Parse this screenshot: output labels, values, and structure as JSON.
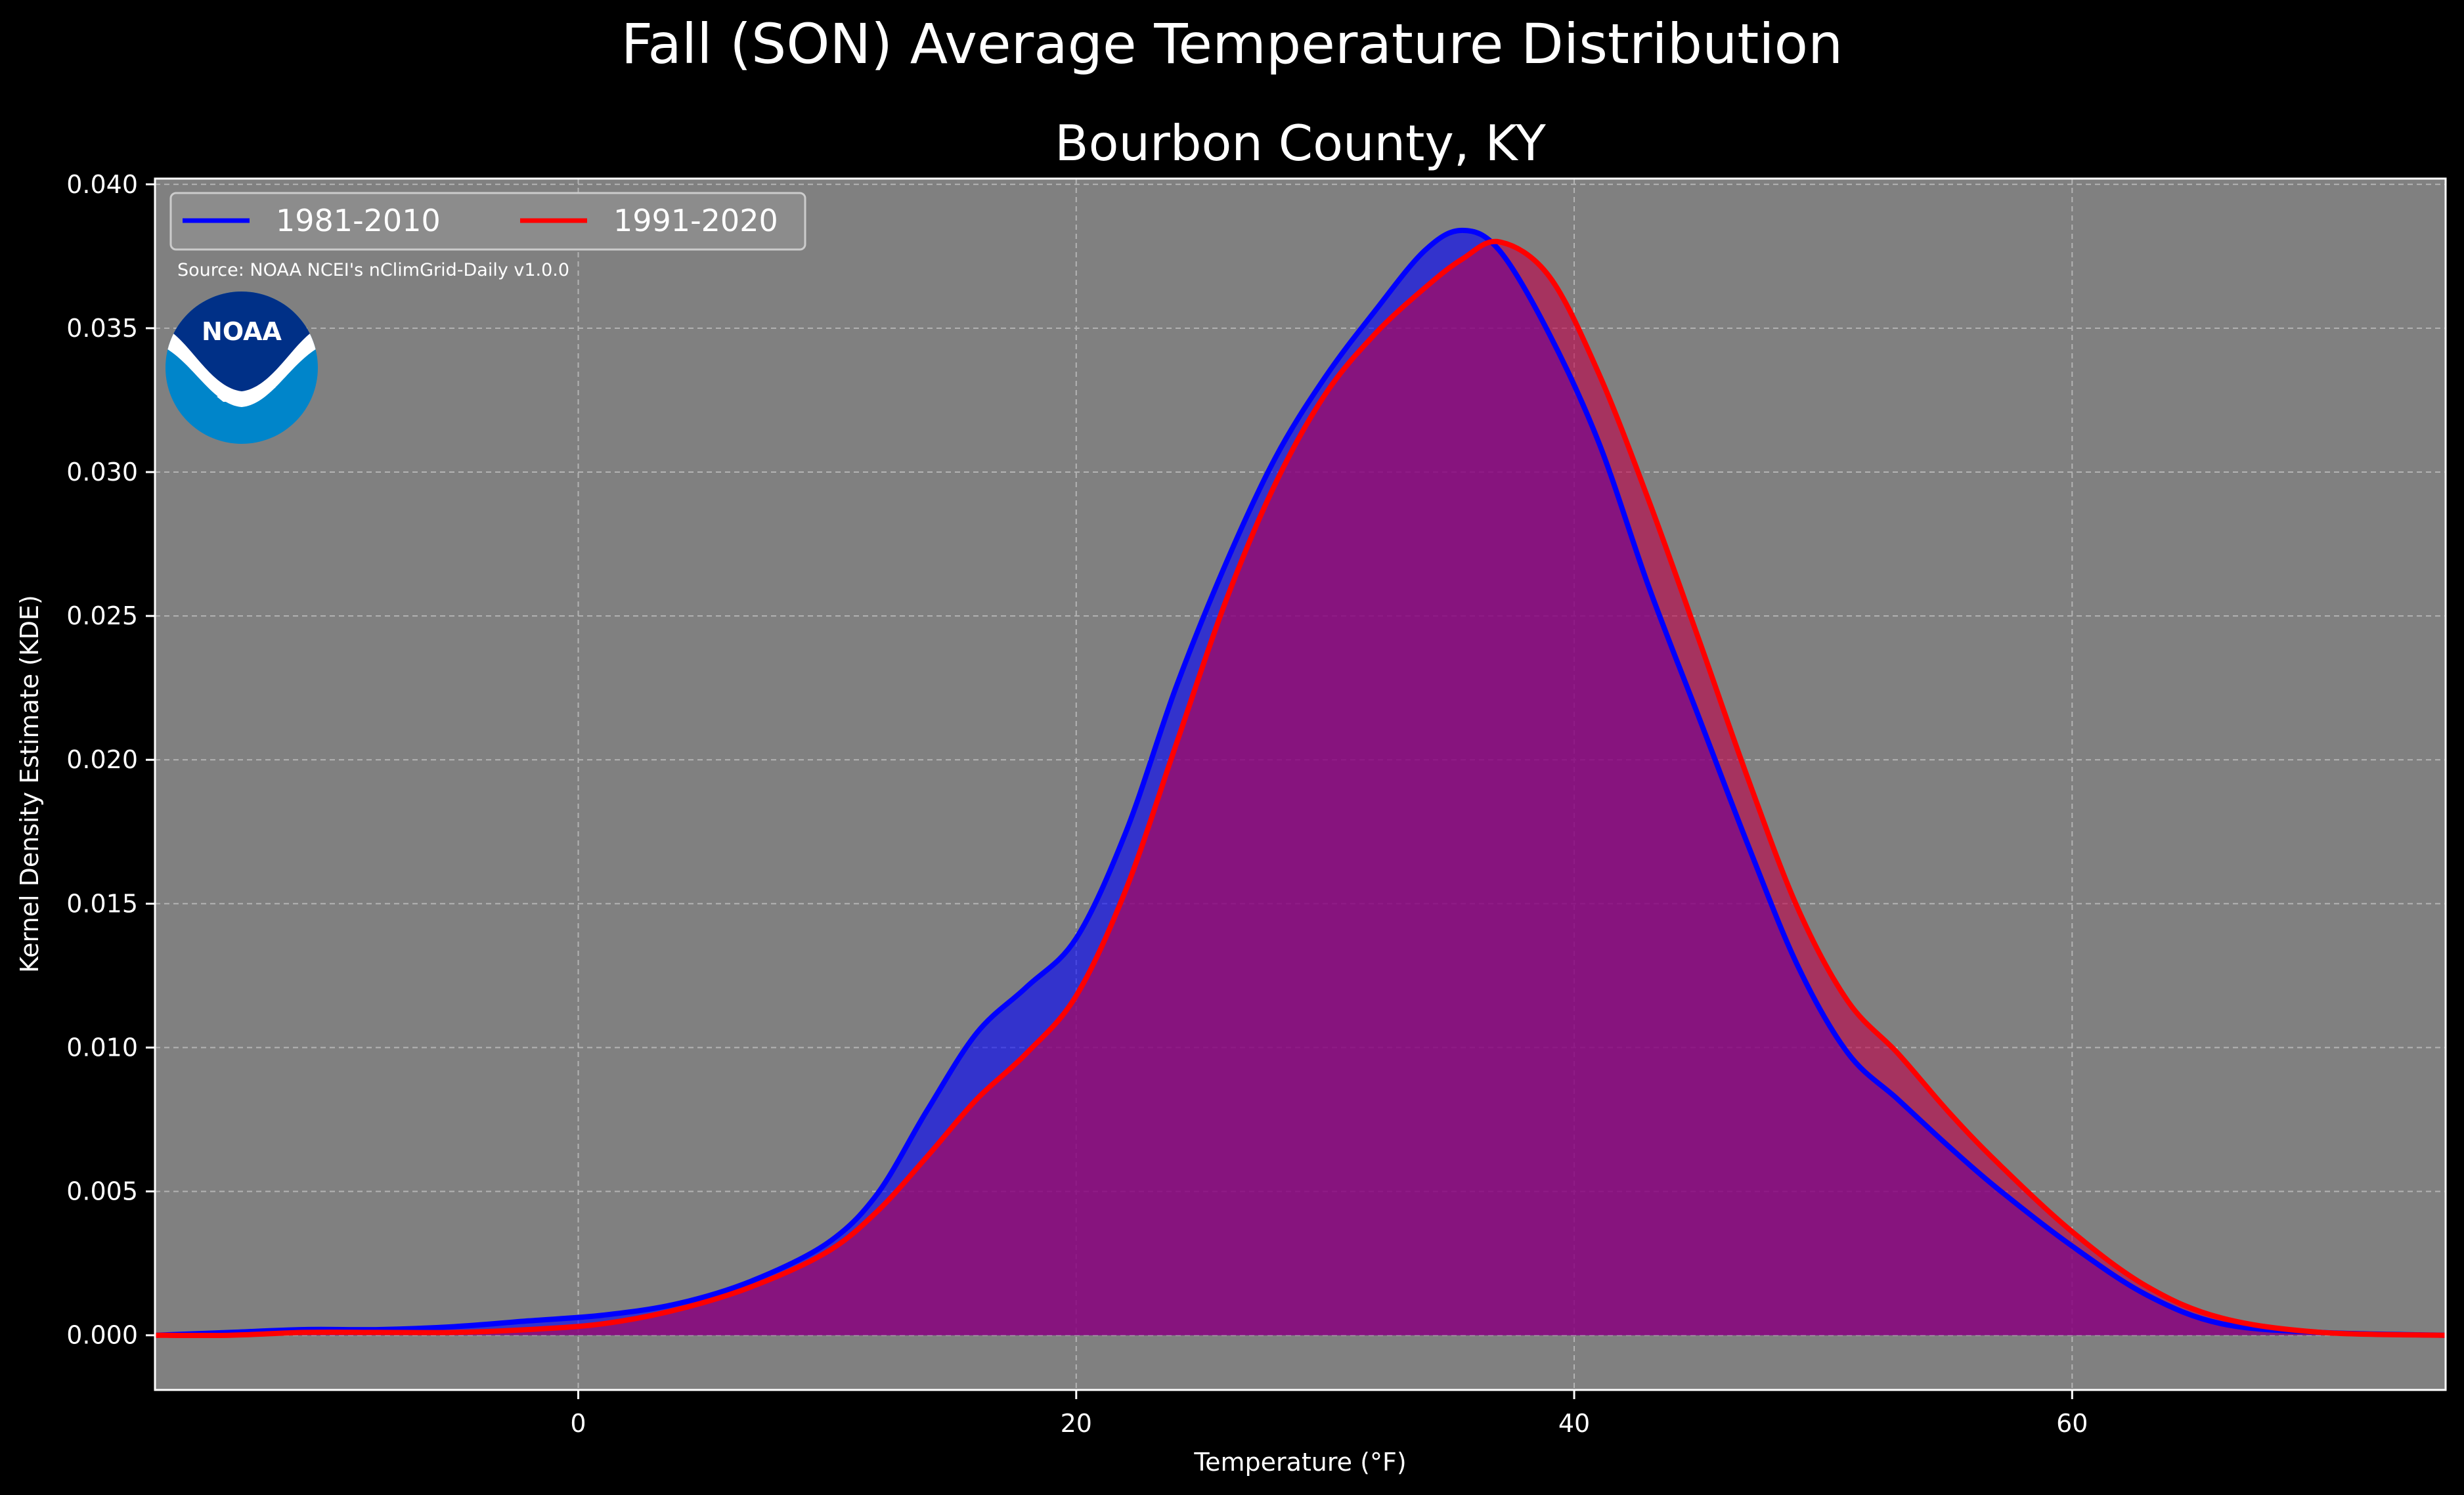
{
  "suptitle": "Fall (SON) Average Temperature Distribution",
  "title": "Bourbon County, KY",
  "source_text": "Source: NOAA NCEI's nClimGrid-Daily v1.0.0",
  "logo": {
    "text": "NOAA",
    "icon": "noaa-logo",
    "colors": {
      "top": "#003087",
      "bottom": "#0085ca",
      "wave": "#ffffff"
    }
  },
  "chart_data": {
    "type": "area",
    "title": "Bourbon County, KY",
    "xlabel": "Temperature (°F)",
    "ylabel": "Kernel Density Estimate (KDE)",
    "xlim": [
      -17,
      75
    ],
    "ylim": [
      -0.0019,
      0.0402
    ],
    "xticks": [
      0,
      20,
      40,
      60
    ],
    "xtick_labels": [
      "0",
      "20",
      "40",
      "60"
    ],
    "yticks": [
      0.0,
      0.005,
      0.01,
      0.015,
      0.02,
      0.025,
      0.03,
      0.035,
      0.04
    ],
    "ytick_labels": [
      "0.000",
      "0.005",
      "0.010",
      "0.015",
      "0.020",
      "0.025",
      "0.030",
      "0.035",
      "0.040"
    ],
    "grid": true,
    "legend_position": "upper-left",
    "background_color": "#808080",
    "series": [
      {
        "name": "1981-2010",
        "color": "#0000ff",
        "fill_color": "#0000ff",
        "x": [
          -17,
          -14,
          -11,
          -8,
          -5,
          -2,
          1,
          4,
          7,
          10,
          12,
          14,
          16,
          18,
          20,
          22,
          24,
          26,
          28,
          30,
          32,
          34,
          35.5,
          37,
          39,
          41,
          43,
          45,
          47,
          49,
          51,
          53,
          55,
          57,
          60,
          63,
          66,
          70,
          75
        ],
        "y": [
          0.0,
          0.0001,
          0.0002,
          0.0002,
          0.0003,
          0.0005,
          0.0007,
          0.0011,
          0.0019,
          0.0032,
          0.0049,
          0.0078,
          0.0105,
          0.0121,
          0.0138,
          0.0175,
          0.0225,
          0.0268,
          0.0305,
          0.0333,
          0.0356,
          0.0377,
          0.0384,
          0.0377,
          0.0348,
          0.031,
          0.026,
          0.0215,
          0.017,
          0.0128,
          0.0098,
          0.0082,
          0.0066,
          0.0051,
          0.0031,
          0.0014,
          0.0004,
          0.0001,
          0.0
        ]
      },
      {
        "name": "1991-2020",
        "color": "#ff0000",
        "fill_color": "#c0004a",
        "x": [
          -17,
          -14,
          -11,
          -8,
          -5,
          -2,
          1,
          4,
          7,
          10,
          12,
          14,
          16,
          18,
          20,
          22,
          24,
          26,
          28,
          30,
          32,
          34,
          35.5,
          37,
          39,
          41,
          43,
          45,
          47,
          49,
          51,
          53,
          55,
          57,
          60,
          63,
          66,
          70,
          75
        ],
        "y": [
          0.0,
          0.0,
          0.0001,
          0.0001,
          0.0001,
          0.0002,
          0.0004,
          0.0009,
          0.0017,
          0.0029,
          0.0043,
          0.0062,
          0.0082,
          0.0098,
          0.0118,
          0.0155,
          0.0205,
          0.0255,
          0.0296,
          0.0327,
          0.0348,
          0.0364,
          0.0374,
          0.038,
          0.0368,
          0.0334,
          0.029,
          0.0242,
          0.0193,
          0.0148,
          0.0116,
          0.0098,
          0.0078,
          0.006,
          0.0036,
          0.0017,
          0.0006,
          0.0001,
          0.0
        ]
      }
    ],
    "fill_opacity": 0.6
  }
}
